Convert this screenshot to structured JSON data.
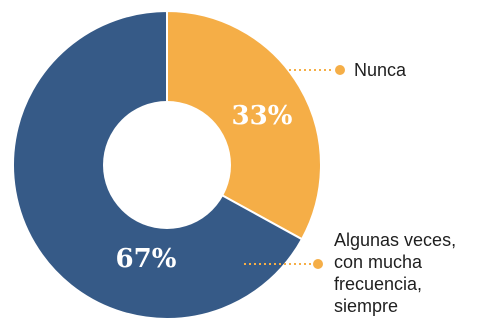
{
  "chart_data": {
    "type": "pie",
    "donut": true,
    "slices": [
      {
        "label_lines": [
          "Nunca"
        ],
        "value": 33,
        "display": "33%",
        "color": "#F5AE47"
      },
      {
        "label_lines": [
          "Algunas veces,",
          "con mucha",
          "frecuencia,",
          "siempre"
        ],
        "value": 67,
        "display": "67%",
        "color": "#365A87"
      }
    ],
    "legend_placement": "right"
  },
  "colors": {
    "nunca": "#F5AE47",
    "algunas": "#365A87",
    "leader_nunca": "#F5AE47",
    "leader_algunas": "#F5AE47"
  }
}
